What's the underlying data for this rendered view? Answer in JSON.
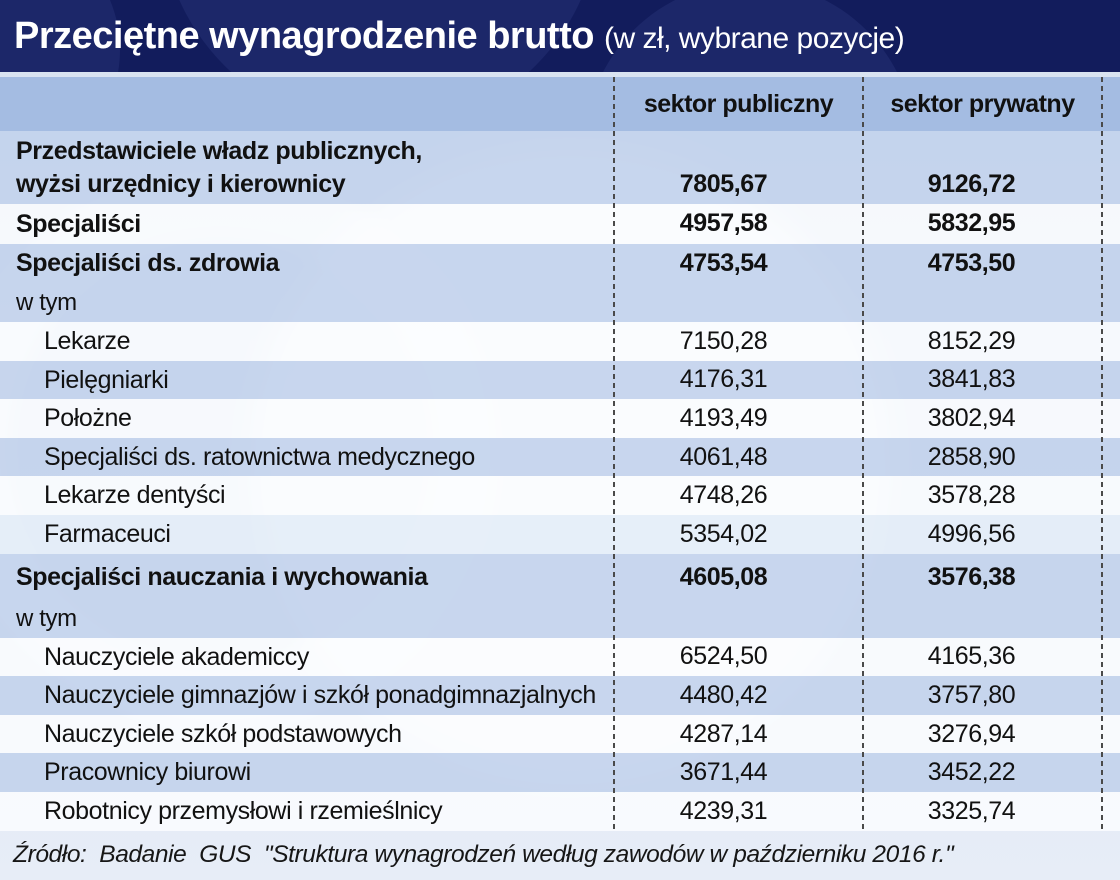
{
  "title": {
    "main": "Przeciętne wynagrodzenie brutto",
    "sub": "(w zł, wybrane pozycje)"
  },
  "columns": [
    "sektor publiczny",
    "sektor prywatny"
  ],
  "rows": [
    {
      "label": "Przedstawiciele władz publicznych,\nwyżsi urzędnicy i kierownicy",
      "public": "7805,67",
      "private": "9126,72",
      "bold": true,
      "indent": false,
      "shade": "blue",
      "variant": "first"
    },
    {
      "label": "Specjaliści",
      "public": "4957,58",
      "private": "5832,95",
      "bold": true,
      "indent": false,
      "shade": "white",
      "variant": "group"
    },
    {
      "label": "Specjaliści ds. zdrowia",
      "public": "4753,54",
      "private": "4753,50",
      "bold": true,
      "indent": false,
      "shade": "blue",
      "variant": "group"
    },
    {
      "label": "w tym",
      "public": "",
      "private": "",
      "bold": false,
      "indent": false,
      "shade": "blue",
      "variant": "wtym"
    },
    {
      "label": "Lekarze",
      "public": "7150,28",
      "private": "8152,29",
      "bold": false,
      "indent": true,
      "shade": "white",
      "variant": "item"
    },
    {
      "label": "Pielęgniarki",
      "public": "4176,31",
      "private": "3841,83",
      "bold": false,
      "indent": true,
      "shade": "blue",
      "variant": "item"
    },
    {
      "label": "Położne",
      "public": "4193,49",
      "private": "3802,94",
      "bold": false,
      "indent": true,
      "shade": "white",
      "variant": "item"
    },
    {
      "label": "Specjaliści ds. ratownictwa medycznego",
      "public": "4061,48",
      "private": "2858,90",
      "bold": false,
      "indent": true,
      "shade": "blue",
      "variant": "item"
    },
    {
      "label": "Lekarze dentyści",
      "public": "4748,26",
      "private": "3578,28",
      "bold": false,
      "indent": true,
      "shade": "white",
      "variant": "item"
    },
    {
      "label": "Farmaceuci",
      "public": "5354,02",
      "private": "4996,56",
      "bold": false,
      "indent": true,
      "shade": "pale",
      "variant": "item"
    },
    {
      "label": "Specjaliści nauczania i wychowania",
      "public": "4605,08",
      "private": "3576,38",
      "bold": true,
      "indent": false,
      "shade": "blue",
      "variant": "group-tall"
    },
    {
      "label": "w tym",
      "public": "",
      "private": "",
      "bold": false,
      "indent": false,
      "shade": "blue",
      "variant": "wtym2"
    },
    {
      "label": "Nauczyciele akademiccy",
      "public": "6524,50",
      "private": "4165,36",
      "bold": false,
      "indent": true,
      "shade": "white",
      "variant": "item"
    },
    {
      "label": "Nauczyciele gimnazjów i szkół ponadgimnazjalnych",
      "public": "4480,42",
      "private": "3757,80",
      "bold": false,
      "indent": true,
      "shade": "blue",
      "variant": "item"
    },
    {
      "label": "Nauczyciele szkół podstawowych",
      "public": "4287,14",
      "private": "3276,94",
      "bold": false,
      "indent": true,
      "shade": "white",
      "variant": "item"
    },
    {
      "label": "Pracownicy biurowi",
      "public": "3671,44",
      "private": "3452,22",
      "bold": false,
      "indent": true,
      "shade": "blue",
      "variant": "item"
    },
    {
      "label": "Robotnicy przemysłowi i rzemieślnicy",
      "public": "4239,31",
      "private": "3325,74",
      "bold": false,
      "indent": true,
      "shade": "white",
      "variant": "item"
    }
  ],
  "source": "Źródło:  Badanie  GUS  \"Struktura wynagrodzeń według zawodów w październiku 2016 r.\"",
  "colors": {
    "title_bar": "#121c5c",
    "header_band": "#a4bce2",
    "row_blue": "#c6d5ed",
    "row_white": "#f1f4f8",
    "text": "#111111"
  },
  "chart_data": {
    "type": "table",
    "title": "Przeciętne wynagrodzenie brutto (w zł, wybrane pozycje)",
    "columns": [
      "sektor publiczny",
      "sektor prywatny"
    ],
    "series": [
      {
        "name": "Przedstawiciele władz publicznych, wyżsi urzędnicy i kierownicy",
        "values": [
          7805.67,
          9126.72
        ]
      },
      {
        "name": "Specjaliści",
        "values": [
          4957.58,
          5832.95
        ]
      },
      {
        "name": "Specjaliści ds. zdrowia",
        "values": [
          4753.54,
          4753.5
        ]
      },
      {
        "name": "Lekarze",
        "values": [
          7150.28,
          8152.29
        ]
      },
      {
        "name": "Pielęgniarki",
        "values": [
          4176.31,
          3841.83
        ]
      },
      {
        "name": "Położne",
        "values": [
          4193.49,
          3802.94
        ]
      },
      {
        "name": "Specjaliści ds. ratownictwa medycznego",
        "values": [
          4061.48,
          2858.9
        ]
      },
      {
        "name": "Lekarze dentyści",
        "values": [
          4748.26,
          3578.28
        ]
      },
      {
        "name": "Farmaceuci",
        "values": [
          5354.02,
          4996.56
        ]
      },
      {
        "name": "Specjaliści nauczania i wychowania",
        "values": [
          4605.08,
          3576.38
        ]
      },
      {
        "name": "Nauczyciele akademiccy",
        "values": [
          6524.5,
          4165.36
        ]
      },
      {
        "name": "Nauczyciele gimnazjów i szkół ponadgimnazjalnych",
        "values": [
          4480.42,
          3757.8
        ]
      },
      {
        "name": "Nauczyciele szkół podstawowych",
        "values": [
          4287.14,
          3276.94
        ]
      },
      {
        "name": "Pracownicy biurowi",
        "values": [
          3671.44,
          3452.22
        ]
      },
      {
        "name": "Robotnicy przemysłowi i rzemieślnicy",
        "values": [
          4239.31,
          3325.74
        ]
      }
    ]
  }
}
